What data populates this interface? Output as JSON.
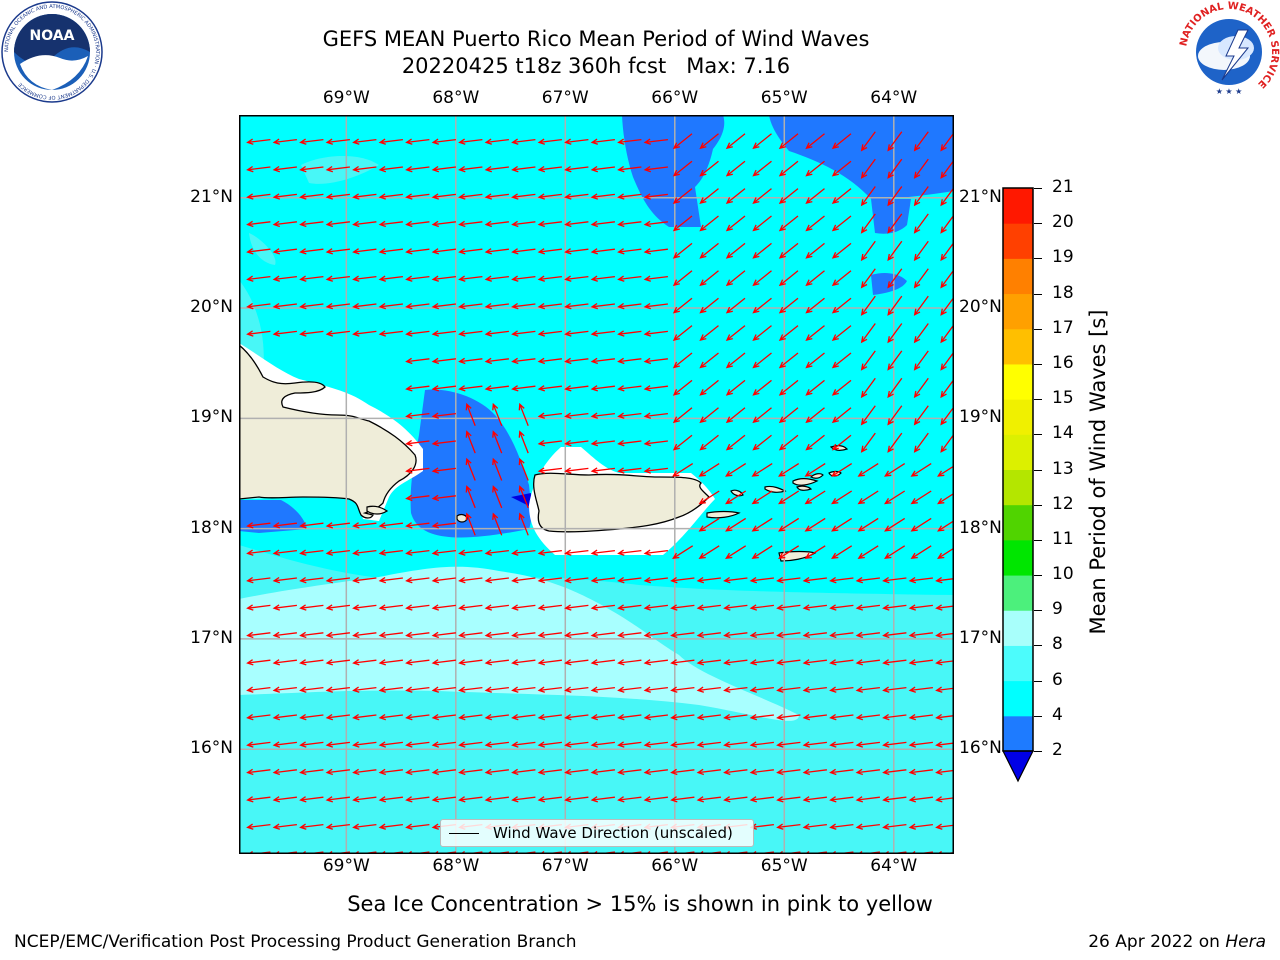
{
  "title_line1": "GEFS MEAN Puerto Rico Mean Period of Wind Waves",
  "title_line2": "20220425 t18z 360h fcst   Max: 7.16",
  "map": {
    "extent": {
      "lon": [
        -69.98,
        -63.45
      ],
      "lat": [
        15.05,
        21.75
      ]
    },
    "lon_labels": [
      "69°W",
      "68°W",
      "67°W",
      "66°W",
      "65°W",
      "64°W"
    ],
    "lon_values": [
      -69,
      -68,
      -67,
      -66,
      -65,
      -64
    ],
    "lat_labels": [
      "21°N",
      "20°N",
      "19°N",
      "18°N",
      "17°N",
      "16°N"
    ],
    "lat_values": [
      21,
      20,
      19,
      18,
      17,
      16
    ],
    "wind_wave_direction": "westward, tilted southwest near Puerto Rico and east of it",
    "legend": "Wind Wave Direction (unscaled)",
    "colors": {
      "band_2_4": "#1f78ff",
      "band_4_6": "#00ffff",
      "band_6_8": "#48f7f7",
      "band_8_9": "#a8ffff",
      "land": "#efedd9",
      "below_2": "#0000e0",
      "arrow": "#ff0000",
      "grid": "#b0b0b0"
    }
  },
  "colorbar": {
    "label": "Mean Period of Wind Waves [s]",
    "ticks": [
      "2",
      "4",
      "6",
      "8",
      "9",
      "10",
      "11",
      "12",
      "13",
      "14",
      "15",
      "16",
      "17",
      "18",
      "19",
      "20",
      "21"
    ],
    "colors": [
      "#1e7bff",
      "#00ffff",
      "#4cfcfc",
      "#a8fffb",
      "#4cf07c",
      "#00e600",
      "#50d400",
      "#b4e600",
      "#dcf000",
      "#f0f000",
      "#ffff00",
      "#ffbf00",
      "#ffa000",
      "#ff8000",
      "#ff4000",
      "#ff1800",
      "#ff0000"
    ],
    "extend_color": "#0000e6"
  },
  "ice_note": "Sea Ice Concentration > 15% is shown in pink to yellow",
  "footer_left": "NCEP/EMC/Verification Post Processing Product Generation Branch",
  "footer_right_date": "26 Apr 2022 on",
  "footer_right_host": "Hera",
  "logos": {
    "noaa": "NOAA",
    "noaa_ring_text": "NATIONAL OCEANIC AND ATMOSPHERIC ADMINISTRATION · U.S. DEPARTMENT OF COMMERCE",
    "nws_ring_text": "NATIONAL WEATHER SERVICE"
  }
}
